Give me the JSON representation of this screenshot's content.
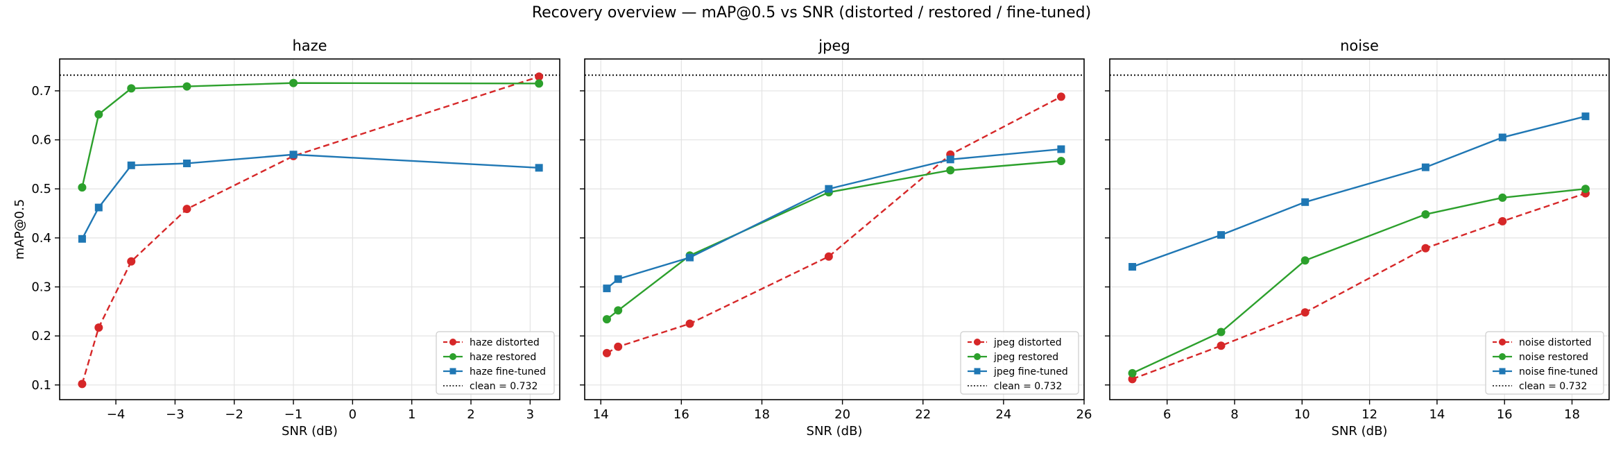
{
  "figure": {
    "title": "Recovery overview — mAP@0.5 vs SNR (distorted / restored / fine-tuned)"
  },
  "colors": {
    "distorted": "#d62728",
    "restored": "#2ca02c",
    "fine_tuned": "#1f77b4",
    "clean": "#000000"
  },
  "chart_data": [
    {
      "type": "line",
      "title": "haze",
      "xlabel": "SNR (dB)",
      "ylabel": "mAP@0.5",
      "xlim": [
        -4.95,
        3.5
      ],
      "ylim": [
        0.07,
        0.765
      ],
      "xticks": [
        -4,
        -3,
        -2,
        -1,
        0,
        1,
        2,
        3
      ],
      "xtick_labels": [
        "−4",
        "−3",
        "−2",
        "−1",
        "0",
        "1",
        "2",
        "3"
      ],
      "yticks": [
        0.1,
        0.2,
        0.3,
        0.4,
        0.5,
        0.6,
        0.7
      ],
      "ytick_labels": [
        "0.1",
        "0.2",
        "0.3",
        "0.4",
        "0.5",
        "0.6",
        "0.7"
      ],
      "grid": true,
      "legend_position": "lower-right",
      "clean": {
        "label": "clean = 0.732",
        "value": 0.732
      },
      "series": [
        {
          "name": "haze distorted",
          "kind": "distorted",
          "marker": "circle",
          "style": "dashed",
          "x": [
            -4.57,
            -4.29,
            -3.74,
            -2.8,
            -1.0,
            3.15
          ],
          "y": [
            0.102,
            0.217,
            0.352,
            0.459,
            0.567,
            0.729
          ]
        },
        {
          "name": "haze restored",
          "kind": "restored",
          "marker": "circle",
          "style": "solid",
          "x": [
            -4.57,
            -4.29,
            -3.74,
            -2.8,
            -1.0,
            3.15
          ],
          "y": [
            0.503,
            0.652,
            0.705,
            0.709,
            0.716,
            0.715
          ]
        },
        {
          "name": "haze fine-tuned",
          "kind": "fine_tuned",
          "marker": "square",
          "style": "solid",
          "x": [
            -4.57,
            -4.29,
            -3.74,
            -2.8,
            -1.0,
            3.15
          ],
          "y": [
            0.398,
            0.462,
            0.548,
            0.552,
            0.57,
            0.543
          ]
        }
      ]
    },
    {
      "type": "line",
      "title": "jpeg",
      "xlabel": "SNR (dB)",
      "ylabel": "",
      "xlim": [
        13.6,
        26.0
      ],
      "ylim": [
        0.07,
        0.765
      ],
      "xticks": [
        14,
        16,
        18,
        20,
        22,
        24,
        26
      ],
      "xtick_labels": [
        "14",
        "16",
        "18",
        "20",
        "22",
        "24",
        "26"
      ],
      "yticks": [
        0.1,
        0.2,
        0.3,
        0.4,
        0.5,
        0.6,
        0.7
      ],
      "ytick_labels": [],
      "grid": true,
      "legend_position": "lower-right",
      "clean": {
        "label": "clean = 0.732",
        "value": 0.732
      },
      "series": [
        {
          "name": "jpeg distorted",
          "kind": "distorted",
          "marker": "circle",
          "style": "dashed",
          "x": [
            14.15,
            14.43,
            16.21,
            19.66,
            22.68,
            25.43
          ],
          "y": [
            0.165,
            0.178,
            0.225,
            0.362,
            0.57,
            0.688
          ]
        },
        {
          "name": "jpeg restored",
          "kind": "restored",
          "marker": "circle",
          "style": "solid",
          "x": [
            14.15,
            14.43,
            16.21,
            19.66,
            22.68,
            25.43
          ],
          "y": [
            0.234,
            0.252,
            0.364,
            0.493,
            0.538,
            0.557
          ]
        },
        {
          "name": "jpeg fine-tuned",
          "kind": "fine_tuned",
          "marker": "square",
          "style": "solid",
          "x": [
            14.15,
            14.43,
            16.21,
            19.66,
            22.68,
            25.43
          ],
          "y": [
            0.297,
            0.316,
            0.36,
            0.5,
            0.56,
            0.581
          ]
        }
      ]
    },
    {
      "type": "line",
      "title": "noise",
      "xlabel": "SNR (dB)",
      "ylabel": "",
      "xlim": [
        4.3,
        19.1
      ],
      "ylim": [
        0.07,
        0.765
      ],
      "xticks": [
        6,
        8,
        10,
        12,
        14,
        16,
        18
      ],
      "xtick_labels": [
        "6",
        "8",
        "10",
        "12",
        "14",
        "16",
        "18"
      ],
      "yticks": [
        0.1,
        0.2,
        0.3,
        0.4,
        0.5,
        0.6,
        0.7
      ],
      "ytick_labels": [],
      "grid": true,
      "legend_position": "lower-right",
      "clean": {
        "label": "clean = 0.732",
        "value": 0.732
      },
      "series": [
        {
          "name": "noise distorted",
          "kind": "distorted",
          "marker": "circle",
          "style": "dashed",
          "x": [
            4.97,
            7.6,
            10.09,
            13.66,
            15.94,
            18.4
          ],
          "y": [
            0.112,
            0.18,
            0.248,
            0.379,
            0.434,
            0.491
          ]
        },
        {
          "name": "noise restored",
          "kind": "restored",
          "marker": "circle",
          "style": "solid",
          "x": [
            4.97,
            7.6,
            10.09,
            13.66,
            15.94,
            18.4
          ],
          "y": [
            0.124,
            0.208,
            0.354,
            0.448,
            0.482,
            0.5
          ]
        },
        {
          "name": "noise fine-tuned",
          "kind": "fine_tuned",
          "marker": "square",
          "style": "solid",
          "x": [
            4.97,
            7.6,
            10.09,
            13.66,
            15.94,
            18.4
          ],
          "y": [
            0.341,
            0.406,
            0.473,
            0.544,
            0.605,
            0.648
          ]
        }
      ]
    }
  ]
}
